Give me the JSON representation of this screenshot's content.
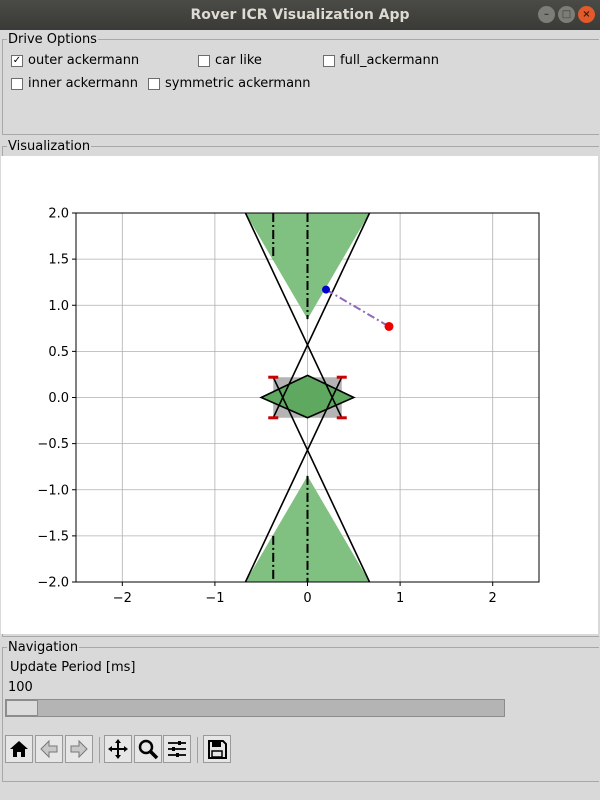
{
  "window": {
    "title": "Rover ICR Visualization App"
  },
  "drive_options": {
    "legend": "Drive Options",
    "items": [
      {
        "label": "outer ackermann",
        "checked": true
      },
      {
        "label": "car like",
        "checked": false
      },
      {
        "label": "full_ackermann",
        "checked": false
      },
      {
        "label": "inner ackermann",
        "checked": false
      },
      {
        "label": "symmetric ackermann",
        "checked": false
      }
    ]
  },
  "visualization": {
    "legend": "Visualization"
  },
  "chart_data": {
    "type": "line",
    "title": "",
    "xlabel": "",
    "ylabel": "",
    "xlim": [
      -2.5,
      2.5
    ],
    "ylim": [
      -2.0,
      2.0
    ],
    "grid": true,
    "xticks": [
      "−2",
      "−1",
      "0",
      "1",
      "2"
    ],
    "xtick_values": [
      -2,
      -1,
      0,
      1,
      2
    ],
    "yticks": [
      "2.0",
      "1.5",
      "1.0",
      "0.5",
      "0.0",
      "−0.5",
      "−1.0",
      "−1.5",
      "−2.0"
    ],
    "ytick_values": [
      2.0,
      1.5,
      1.0,
      0.5,
      0.0,
      -0.5,
      -1.0,
      -1.5,
      -2.0
    ],
    "green_regions": [
      [
        [
          -0.67,
          2.0
        ],
        [
          0.67,
          2.0
        ],
        [
          0,
          0.85
        ]
      ],
      [
        [
          -0.67,
          -2.0
        ],
        [
          0.67,
          -2.0
        ],
        [
          0,
          -0.85
        ]
      ]
    ],
    "boundary_lines": [
      [
        [
          -0.67,
          2.0
        ],
        [
          0.37,
          -0.22
        ]
      ],
      [
        [
          0.67,
          2.0
        ],
        [
          -0.37,
          -0.22
        ]
      ],
      [
        [
          -0.37,
          0.22
        ],
        [
          0.67,
          -2.0
        ]
      ],
      [
        [
          0.37,
          0.22
        ],
        [
          -0.67,
          -2.0
        ]
      ]
    ],
    "rover_body": [
      [
        -0.37,
        0.22
      ],
      [
        0.37,
        0.22
      ],
      [
        0.37,
        -0.22
      ],
      [
        -0.37,
        -0.22
      ]
    ],
    "rover_diamond": [
      [
        0,
        0.24
      ],
      [
        0.5,
        0.0
      ],
      [
        0,
        -0.22
      ],
      [
        -0.5,
        0.0
      ]
    ],
    "wheels": [
      [
        -0.37,
        0.22
      ],
      [
        0.37,
        0.22
      ],
      [
        -0.37,
        -0.22
      ],
      [
        0.37,
        -0.22
      ]
    ],
    "axis_lines": [
      [
        [
          0,
          2.0
        ],
        [
          0,
          0.85
        ]
      ],
      [
        [
          -0.37,
          2.0
        ],
        [
          -0.37,
          1.5
        ]
      ],
      [
        [
          0,
          -0.85
        ],
        [
          0,
          -2.0
        ]
      ],
      [
        [
          -0.37,
          -1.5
        ],
        [
          -0.37,
          -2.0
        ]
      ]
    ],
    "icr_path": {
      "x": [
        0.2,
        0.88
      ],
      "y": [
        1.17,
        0.77
      ]
    },
    "blue_point": {
      "x": 0.2,
      "y": 1.17
    },
    "red_point": {
      "x": 0.88,
      "y": 0.77
    },
    "colors": {
      "region": "#80c080",
      "body": "#b4b4b4",
      "path": "#9467bd",
      "blue": "#0000cc",
      "red": "#ee0000",
      "wheel": "#cc0000"
    }
  },
  "navigation": {
    "legend": "Navigation",
    "slider_label": "Update Period [ms]",
    "slider_value": "100",
    "slider_position": 0.0
  },
  "toolbar": {
    "home_icon": "home-icon",
    "back_icon": "back-arrow-icon",
    "forward_icon": "forward-arrow-icon",
    "pan_icon": "pan-icon",
    "zoom_icon": "zoom-icon",
    "configure_icon": "configure-subplots-icon",
    "save_icon": "save-icon"
  }
}
